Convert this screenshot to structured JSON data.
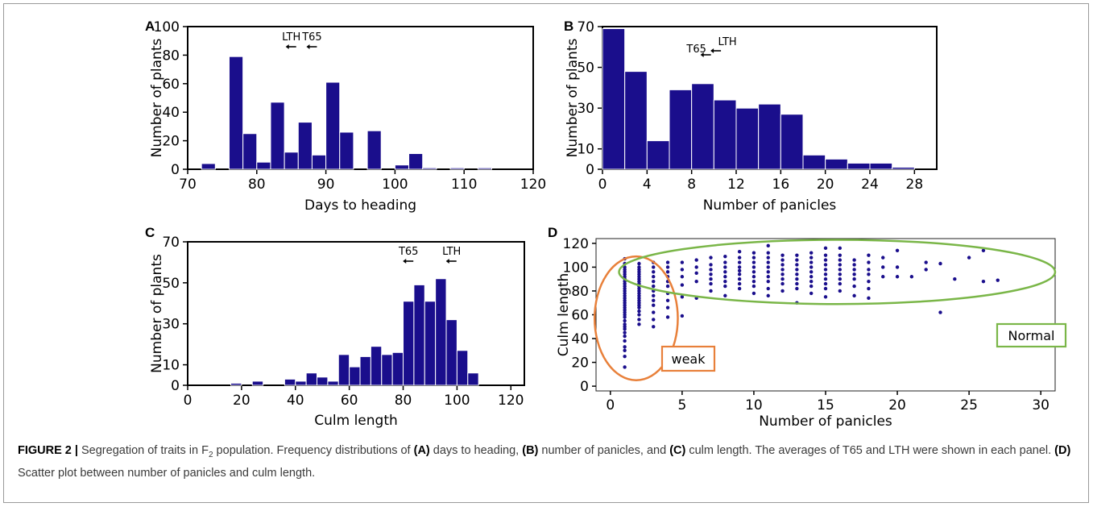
{
  "caption": {
    "figure_label": "FIGURE 2 |",
    "segments": [
      {
        "text": " Segregation of traits in F",
        "bold": false
      },
      {
        "text": "2",
        "bold": false,
        "sub": true
      },
      {
        "text": " population. Frequency distributions of ",
        "bold": false
      },
      {
        "text": "(A)",
        "bold": true
      },
      {
        "text": " days to heading, ",
        "bold": false
      },
      {
        "text": "(B)",
        "bold": true
      },
      {
        "text": " number of panicles, and ",
        "bold": false
      },
      {
        "text": "(C)",
        "bold": true
      },
      {
        "text": " culm length. The averages of T65 and LTH were shown in each panel. ",
        "bold": false
      },
      {
        "text": "(D)",
        "bold": true
      },
      {
        "text": " Scatter plot between number of panicles and culm length.",
        "bold": false
      }
    ]
  },
  "colors": {
    "bar": "#1a0e8c",
    "point": "#1a0e8c",
    "weak": "#e8803a",
    "normal": "#7ab648"
  },
  "chart_data": [
    {
      "panel": "A",
      "type": "bar",
      "xlabel": "Days to heading",
      "ylabel": "Number of plants",
      "xlim": [
        70,
        120
      ],
      "ylim": [
        0,
        100
      ],
      "xticks": [
        70,
        80,
        90,
        100,
        110,
        120
      ],
      "yticks": [
        0,
        20,
        40,
        60,
        80,
        100
      ],
      "bin_width": 2,
      "bins": [
        {
          "x": 71,
          "value": 0
        },
        {
          "x": 73,
          "value": 4
        },
        {
          "x": 75,
          "value": 0
        },
        {
          "x": 77,
          "value": 79
        },
        {
          "x": 79,
          "value": 25
        },
        {
          "x": 81,
          "value": 5
        },
        {
          "x": 83,
          "value": 47
        },
        {
          "x": 85,
          "value": 12
        },
        {
          "x": 87,
          "value": 33
        },
        {
          "x": 89,
          "value": 10
        },
        {
          "x": 91,
          "value": 61
        },
        {
          "x": 93,
          "value": 26
        },
        {
          "x": 95,
          "value": 0
        },
        {
          "x": 97,
          "value": 27
        },
        {
          "x": 99,
          "value": 0
        },
        {
          "x": 101,
          "value": 3
        },
        {
          "x": 103,
          "value": 11
        },
        {
          "x": 105,
          "value": 1
        },
        {
          "x": 107,
          "value": 0
        },
        {
          "x": 109,
          "value": 1
        },
        {
          "x": 111,
          "value": 0
        },
        {
          "x": 113,
          "value": 1
        },
        {
          "x": 115,
          "value": 0
        },
        {
          "x": 117,
          "value": 0
        },
        {
          "x": 119,
          "value": 0
        }
      ],
      "annotations": [
        {
          "label": "LTH",
          "x": 85
        },
        {
          "label": "T65",
          "x": 88
        }
      ]
    },
    {
      "panel": "B",
      "type": "bar",
      "xlabel": "Number of panicles",
      "ylabel": "Number of plants",
      "xlim": [
        0,
        30
      ],
      "ylim": [
        0,
        70
      ],
      "xticks": [
        0,
        4,
        8,
        12,
        16,
        20,
        24,
        28
      ],
      "yticks": [
        0,
        10,
        30,
        50,
        70
      ],
      "bin_width": 2,
      "bins": [
        {
          "x": 1,
          "value": 69
        },
        {
          "x": 3,
          "value": 48
        },
        {
          "x": 5,
          "value": 14
        },
        {
          "x": 7,
          "value": 39
        },
        {
          "x": 9,
          "value": 42
        },
        {
          "x": 11,
          "value": 34
        },
        {
          "x": 13,
          "value": 30
        },
        {
          "x": 15,
          "value": 32
        },
        {
          "x": 17,
          "value": 27
        },
        {
          "x": 19,
          "value": 7
        },
        {
          "x": 21,
          "value": 5
        },
        {
          "x": 23,
          "value": 3
        },
        {
          "x": 25,
          "value": 3
        },
        {
          "x": 27,
          "value": 1
        },
        {
          "x": 29,
          "value": 0
        }
      ],
      "annotations": [
        {
          "label": "T65",
          "x": 9.3
        },
        {
          "label": "LTH",
          "x": 10.2
        }
      ]
    },
    {
      "panel": "C",
      "type": "bar",
      "xlabel": "Culm length",
      "ylabel": "Number of plants",
      "xlim": [
        0,
        125
      ],
      "ylim": [
        0,
        70
      ],
      "xticks": [
        0,
        20,
        40,
        60,
        80,
        100,
        120
      ],
      "yticks": [
        0,
        10,
        30,
        50,
        70
      ],
      "bin_width": 4,
      "bins": [
        {
          "x": 2,
          "value": 0
        },
        {
          "x": 6,
          "value": 0
        },
        {
          "x": 10,
          "value": 0
        },
        {
          "x": 14,
          "value": 0
        },
        {
          "x": 18,
          "value": 1
        },
        {
          "x": 22,
          "value": 0
        },
        {
          "x": 26,
          "value": 2
        },
        {
          "x": 30,
          "value": 0
        },
        {
          "x": 34,
          "value": 0
        },
        {
          "x": 38,
          "value": 3
        },
        {
          "x": 42,
          "value": 2
        },
        {
          "x": 46,
          "value": 6
        },
        {
          "x": 50,
          "value": 4
        },
        {
          "x": 54,
          "value": 2
        },
        {
          "x": 58,
          "value": 15
        },
        {
          "x": 62,
          "value": 9
        },
        {
          "x": 66,
          "value": 14
        },
        {
          "x": 70,
          "value": 19
        },
        {
          "x": 74,
          "value": 15
        },
        {
          "x": 78,
          "value": 16
        },
        {
          "x": 82,
          "value": 41
        },
        {
          "x": 86,
          "value": 49
        },
        {
          "x": 90,
          "value": 41
        },
        {
          "x": 94,
          "value": 52
        },
        {
          "x": 98,
          "value": 32
        },
        {
          "x": 102,
          "value": 17
        },
        {
          "x": 106,
          "value": 6
        },
        {
          "x": 110,
          "value": 0
        },
        {
          "x": 114,
          "value": 0
        },
        {
          "x": 118,
          "value": 0
        },
        {
          "x": 122,
          "value": 0
        }
      ],
      "annotations": [
        {
          "label": "T65",
          "x": 82
        },
        {
          "label": "LTH",
          "x": 98
        }
      ]
    },
    {
      "panel": "D",
      "type": "scatter",
      "xlabel": "Number of panicles",
      "ylabel": "Culm length",
      "xlim": [
        -1,
        31
      ],
      "ylim": [
        -4,
        124
      ],
      "xticks": [
        0,
        5,
        10,
        15,
        20,
        25,
        30
      ],
      "yticks": [
        0,
        20,
        40,
        60,
        80,
        100,
        120
      ],
      "grid": false,
      "callouts": [
        {
          "label": "weak",
          "ellipse": {
            "cx": 1.8,
            "cy": 57,
            "rx": 2.9,
            "ry": 52
          },
          "color_key": "weak"
        },
        {
          "label": "Normal",
          "ellipse": {
            "cx": 15.8,
            "cy": 96,
            "rx": 15.2,
            "ry": 27
          },
          "color_key": "normal"
        }
      ],
      "columns": [
        {
          "x": 1,
          "y": [
            16,
            25,
            30,
            33,
            38,
            42,
            45,
            48,
            50,
            52,
            55,
            58,
            60,
            62,
            64,
            66,
            68,
            70,
            72,
            74,
            76,
            78,
            80,
            82,
            84,
            86,
            88,
            90,
            92,
            94,
            96,
            98,
            100,
            103,
            107
          ]
        },
        {
          "x": 2,
          "y": [
            52,
            56,
            60,
            63,
            66,
            68,
            70,
            72,
            74,
            76,
            78,
            80,
            82,
            84,
            86,
            88,
            90,
            92,
            94,
            96,
            98,
            100,
            103
          ]
        },
        {
          "x": 3,
          "y": [
            50,
            56,
            62,
            68,
            72,
            76,
            80,
            84,
            88,
            92,
            96,
            100,
            104
          ]
        },
        {
          "x": 4,
          "y": [
            58,
            66,
            72,
            78,
            84,
            88,
            92,
            96,
            100,
            104
          ]
        },
        {
          "x": 5,
          "y": [
            59,
            75,
            85,
            92,
            98,
            104
          ]
        },
        {
          "x": 6,
          "y": [
            74,
            88,
            95,
            100,
            106
          ]
        },
        {
          "x": 7,
          "y": [
            80,
            86,
            90,
            94,
            98,
            102,
            108
          ]
        },
        {
          "x": 8,
          "y": [
            76,
            84,
            88,
            92,
            96,
            100,
            104,
            109
          ]
        },
        {
          "x": 9,
          "y": [
            82,
            86,
            90,
            94,
            97,
            100,
            104,
            108,
            113
          ]
        },
        {
          "x": 10,
          "y": [
            78,
            84,
            88,
            92,
            96,
            100,
            104,
            108,
            112
          ]
        },
        {
          "x": 11,
          "y": [
            76,
            82,
            88,
            92,
            96,
            100,
            104,
            108,
            112,
            118
          ]
        },
        {
          "x": 12,
          "y": [
            80,
            86,
            90,
            94,
            98,
            102,
            106,
            110
          ]
        },
        {
          "x": 13,
          "y": [
            70,
            82,
            86,
            90,
            94,
            98,
            102,
            106,
            110
          ]
        },
        {
          "x": 14,
          "y": [
            78,
            84,
            88,
            92,
            96,
            100,
            104,
            108,
            112
          ]
        },
        {
          "x": 15,
          "y": [
            75,
            82,
            86,
            90,
            94,
            98,
            102,
            106,
            110,
            116
          ]
        },
        {
          "x": 16,
          "y": [
            80,
            86,
            90,
            94,
            98,
            102,
            106,
            110,
            116
          ]
        },
        {
          "x": 17,
          "y": [
            76,
            84,
            90,
            94,
            98,
            102,
            106
          ]
        },
        {
          "x": 18,
          "y": [
            74,
            82,
            88,
            94,
            98,
            104,
            110
          ]
        },
        {
          "x": 19,
          "y": [
            92,
            100,
            108
          ]
        },
        {
          "x": 20,
          "y": [
            92,
            100,
            114
          ]
        },
        {
          "x": 21,
          "y": [
            92
          ]
        },
        {
          "x": 22,
          "y": [
            98,
            104
          ]
        },
        {
          "x": 23,
          "y": [
            62,
            103
          ]
        },
        {
          "x": 24,
          "y": [
            90
          ]
        },
        {
          "x": 25,
          "y": [
            108
          ]
        },
        {
          "x": 26,
          "y": [
            88,
            114
          ]
        },
        {
          "x": 27,
          "y": [
            89
          ]
        }
      ]
    }
  ]
}
